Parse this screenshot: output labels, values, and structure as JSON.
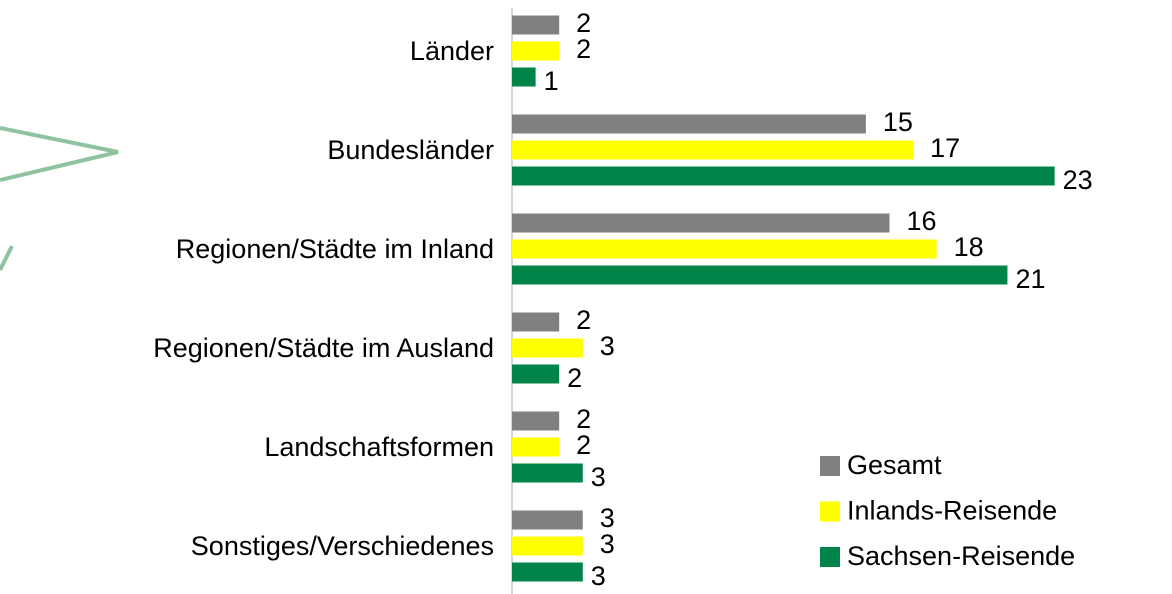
{
  "chart_data": {
    "type": "bar",
    "orientation": "horizontal",
    "categories": [
      "Länder",
      "Bundesländer",
      "Regionen/Städte im Inland",
      "Regionen/Städte im Ausland",
      "Landschaftsformen",
      "Sonstiges/Verschiedenes"
    ],
    "series": [
      {
        "name": "Gesamt",
        "color": "#808080",
        "values": [
          2,
          15,
          16,
          2,
          2,
          3
        ]
      },
      {
        "name": "Inlands-Reisende",
        "color": "#ffff00",
        "values": [
          2,
          17,
          18,
          3,
          2,
          3
        ]
      },
      {
        "name": "Sachsen-Reisende",
        "color": "#00844a",
        "values": [
          1,
          23,
          21,
          2,
          3,
          3
        ]
      }
    ],
    "xlim": [
      0,
      27
    ],
    "legend": "lower right"
  }
}
